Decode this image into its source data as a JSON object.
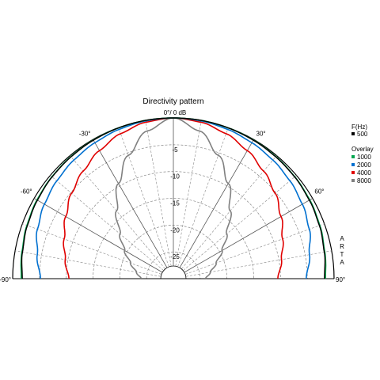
{
  "chart_data": {
    "type": "polar",
    "title": "Directivity pattern",
    "angle_range": [
      -90,
      90
    ],
    "radial_range_db": [
      -30,
      0
    ],
    "radial_ticks": [
      {
        "value": 0,
        "label": "0°/ 0 dB"
      },
      {
        "value": -5,
        "label": "-5"
      },
      {
        "value": -10,
        "label": "-10"
      },
      {
        "value": -15,
        "label": "-15"
      },
      {
        "value": -20,
        "label": "-20"
      },
      {
        "value": -25,
        "label": "-25"
      }
    ],
    "angle_ticks": [
      {
        "value": -90,
        "label": "-90°"
      },
      {
        "value": -60,
        "label": "-60°"
      },
      {
        "value": -30,
        "label": "-30°"
      },
      {
        "value": 30,
        "label": "30°"
      },
      {
        "value": 60,
        "label": "60°"
      },
      {
        "value": 90,
        "label": "90°"
      }
    ],
    "grid": true,
    "legend_header": "F(Hz)",
    "legend_subheader": "Overlay",
    "watermark": "ARTA",
    "series": [
      {
        "name": "500",
        "color": "#000000",
        "angles": [
          -90,
          -80,
          -70,
          -60,
          -50,
          -40,
          -30,
          -20,
          -10,
          0,
          10,
          20,
          30,
          40,
          50,
          60,
          70,
          80,
          90
        ],
        "values": [
          -1.8,
          -1.4,
          -1.0,
          -0.7,
          -0.45,
          -0.3,
          -0.15,
          -0.05,
          0,
          0,
          0,
          -0.05,
          -0.15,
          -0.3,
          -0.45,
          -0.7,
          -1.0,
          -1.4,
          -1.8
        ]
      },
      {
        "name": "1000",
        "color": "#00a650",
        "angles": [
          -90,
          -80,
          -70,
          -60,
          -50,
          -40,
          -30,
          -20,
          -10,
          0,
          10,
          20,
          30,
          40,
          50,
          60,
          70,
          80,
          90
        ],
        "values": [
          -1.6,
          -1.3,
          -0.9,
          -0.6,
          -0.4,
          -0.25,
          -0.12,
          -0.05,
          0,
          0,
          0,
          -0.05,
          -0.12,
          -0.25,
          -0.4,
          -0.6,
          -0.9,
          -1.3,
          -1.6
        ]
      },
      {
        "name": "2000",
        "color": "#0070d0",
        "angles": [
          -90,
          -80,
          -70,
          -60,
          -50,
          -40,
          -30,
          -20,
          -10,
          0,
          10,
          20,
          30,
          40,
          50,
          60,
          70,
          80,
          90
        ],
        "values": [
          -5.2,
          -4.2,
          -3.0,
          -2.2,
          -1.6,
          -1.1,
          -0.7,
          -0.35,
          -0.1,
          0,
          -0.1,
          -0.35,
          -0.7,
          -1.1,
          -1.6,
          -2.2,
          -3.0,
          -4.2,
          -5.2
        ]
      },
      {
        "name": "4000",
        "color": "#e00000",
        "angles": [
          -90,
          -80,
          -70,
          -60,
          -50,
          -40,
          -30,
          -20,
          -10,
          0,
          10,
          20,
          30,
          40,
          50,
          60,
          70,
          80,
          90
        ],
        "values": [
          -10.5,
          -9.5,
          -8.3,
          -6.8,
          -5.2,
          -3.8,
          -2.4,
          -1.2,
          -0.35,
          0,
          -0.35,
          -1.2,
          -2.4,
          -3.8,
          -5.2,
          -6.8,
          -8.3,
          -9.5,
          -10.5
        ]
      },
      {
        "name": "8000",
        "color": "#808080",
        "angles": [
          -90,
          -80,
          -70,
          -60,
          -50,
          -40,
          -30,
          -20,
          -10,
          0,
          10,
          20,
          30,
          40,
          50,
          60,
          70,
          80,
          90
        ],
        "values": [
          -24.0,
          -23.0,
          -21.5,
          -19.5,
          -17.0,
          -13.5,
          -9.5,
          -5.5,
          -2.0,
          0,
          -2.0,
          -5.5,
          -9.5,
          -13.5,
          -17.0,
          -19.5,
          -21.5,
          -23.0,
          -24.0
        ]
      }
    ]
  }
}
